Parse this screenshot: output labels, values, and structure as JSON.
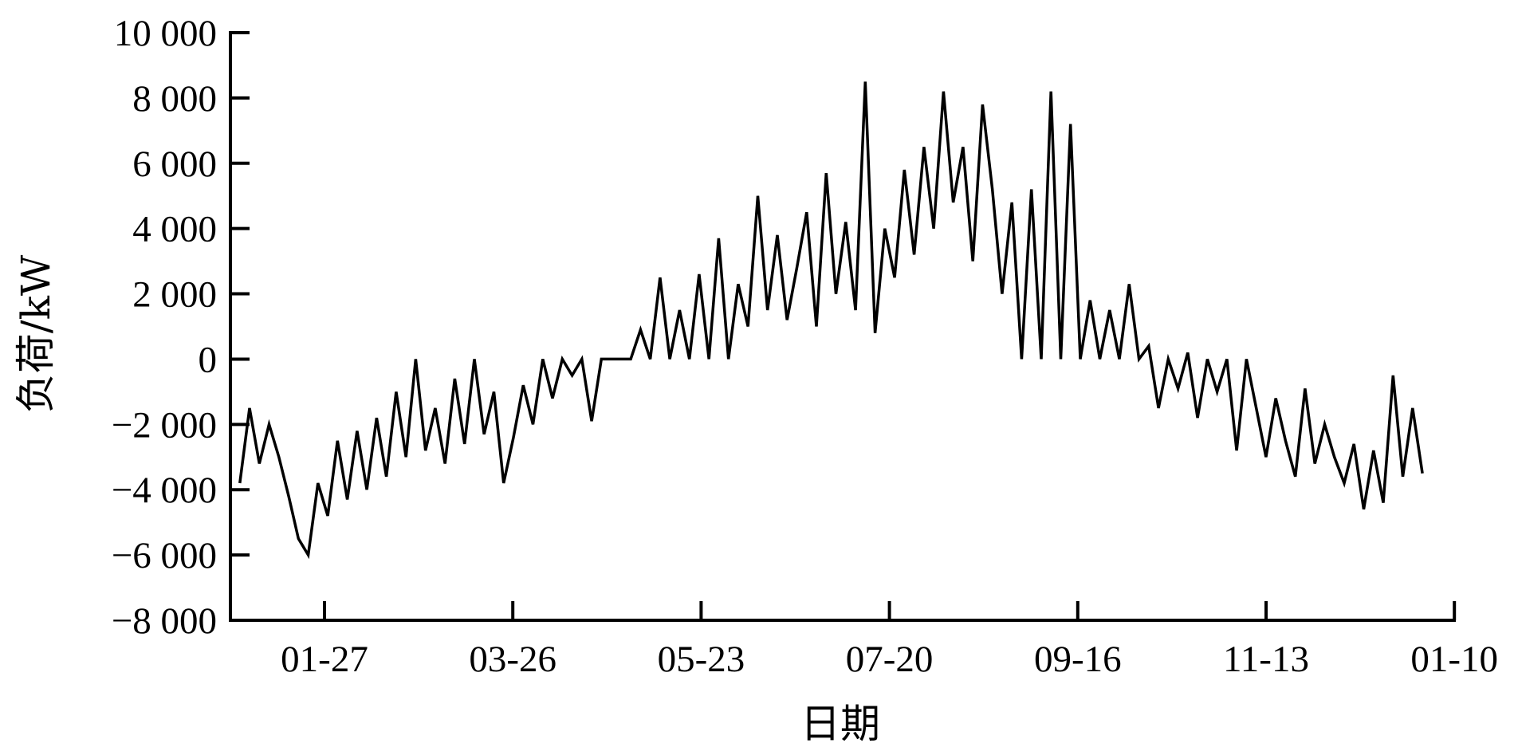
{
  "chart_data": {
    "type": "line",
    "title": "",
    "xlabel": "日期",
    "ylabel": "负荷/kW",
    "ylim": [
      -8000,
      10000
    ],
    "yticks": [
      -8000,
      -6000,
      -4000,
      -2000,
      0,
      2000,
      4000,
      6000,
      8000,
      10000
    ],
    "ytick_labels": [
      "−8 000",
      "−6 000",
      "−4 000",
      "−2 000",
      "0",
      "2 000",
      "4 000",
      "6 000",
      "8 000",
      "10 000"
    ],
    "xticks": [
      "01-27",
      "03-26",
      "05-23",
      "07-20",
      "09-16",
      "11-13",
      "01-10"
    ],
    "grid": false,
    "legend": "none",
    "line_color": "#000000",
    "series": [
      {
        "x": [
          "01-01",
          "01-04",
          "01-07",
          "01-10",
          "01-13",
          "01-16",
          "01-19",
          "01-22",
          "01-25",
          "01-28",
          "01-31",
          "02-03",
          "02-06",
          "02-09",
          "02-12",
          "02-15",
          "02-18",
          "02-21",
          "02-24",
          "02-27",
          "03-02",
          "03-05",
          "03-08",
          "03-11",
          "03-14",
          "03-17",
          "03-20",
          "03-23",
          "03-26",
          "03-29",
          "04-01",
          "04-04",
          "04-07",
          "04-10",
          "04-13",
          "04-16",
          "04-19",
          "04-22",
          "04-25",
          "04-28",
          "05-01",
          "05-04",
          "05-07",
          "05-10",
          "05-13",
          "05-16",
          "05-19",
          "05-22",
          "05-25",
          "05-28",
          "05-31",
          "06-03",
          "06-06",
          "06-09",
          "06-12",
          "06-15",
          "06-18",
          "06-21",
          "06-24",
          "06-27",
          "06-30",
          "07-03",
          "07-06",
          "07-09",
          "07-12",
          "07-15",
          "07-18",
          "07-21",
          "07-24",
          "07-27",
          "07-30",
          "08-02",
          "08-05",
          "08-08",
          "08-11",
          "08-14",
          "08-17",
          "08-20",
          "08-23",
          "08-26",
          "08-29",
          "09-01",
          "09-04",
          "09-07",
          "09-10",
          "09-13",
          "09-16",
          "09-19",
          "09-22",
          "09-25",
          "09-28",
          "10-01",
          "10-04",
          "10-07",
          "10-10",
          "10-13",
          "10-16",
          "10-19",
          "10-22",
          "10-25",
          "10-28",
          "10-31",
          "11-03",
          "11-06",
          "11-09",
          "11-12",
          "11-15",
          "11-18",
          "11-21",
          "11-24",
          "11-27",
          "11-30",
          "12-03",
          "12-06",
          "12-09",
          "12-12",
          "12-15",
          "12-18",
          "12-21",
          "12-24",
          "12-27",
          "12-30"
        ],
        "values": [
          -3800,
          -1500,
          -3200,
          -2000,
          -3000,
          -4200,
          -5500,
          -6000,
          -3800,
          -4800,
          -2500,
          -4300,
          -2200,
          -4000,
          -1800,
          -3600,
          -1000,
          -3000,
          0,
          -2800,
          -1500,
          -3200,
          -600,
          -2600,
          0,
          -2300,
          -1000,
          -3800,
          -2400,
          -800,
          -2000,
          0,
          -1200,
          0,
          -500,
          0,
          -1900,
          0,
          0,
          0,
          0,
          900,
          0,
          2500,
          0,
          1500,
          0,
          2600,
          0,
          3700,
          0,
          2300,
          1000,
          5000,
          1500,
          3800,
          1200,
          2800,
          4500,
          1000,
          5700,
          2000,
          4200,
          1500,
          8500,
          800,
          4000,
          2500,
          5800,
          3200,
          6500,
          4000,
          8200,
          4800,
          6500,
          3000,
          7800,
          5200,
          2000,
          4800,
          0,
          5200,
          0,
          8200,
          0,
          7200,
          0,
          1800,
          0,
          1500,
          0,
          2300,
          0,
          400,
          -1500,
          0,
          -900,
          200,
          -1800,
          0,
          -1000,
          0,
          -2800,
          0,
          -1500,
          -3000,
          -1200,
          -2500,
          -3600,
          -900,
          -3200,
          -2000,
          -3000,
          -3800,
          -2600,
          -4600,
          -2800,
          -4400,
          -500,
          -3600,
          -1500,
          -3500
        ]
      }
    ]
  }
}
